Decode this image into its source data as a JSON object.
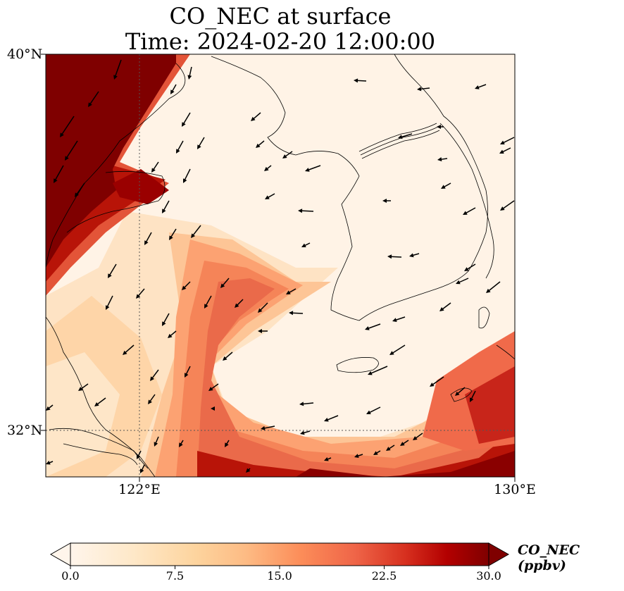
{
  "title_line1": "CO_NEC at surface",
  "title_line2": "Time: 2024-02-20 12:00:00",
  "lat_labels": [
    "40°N",
    "32°N"
  ],
  "lon_labels": [
    "122°E",
    "130°E"
  ],
  "colorbar": {
    "label": "CO_NEC (ppbv)",
    "ticks": [
      "0.0",
      "7.5",
      "15.0",
      "22.5",
      "30.0"
    ],
    "min": 0,
    "max": 30,
    "colormap": [
      "#fff5eb",
      "#fdd49e",
      "#fdbb84",
      "#fc8d59",
      "#ef6548",
      "#d7301f",
      "#b30000",
      "#7f0000"
    ]
  },
  "map_extent": {
    "lon": [
      120,
      130
    ],
    "lat": [
      31,
      40
    ]
  },
  "colors": {
    "coast": "#000000",
    "arrow": "#000000",
    "grid": "#555555"
  }
}
